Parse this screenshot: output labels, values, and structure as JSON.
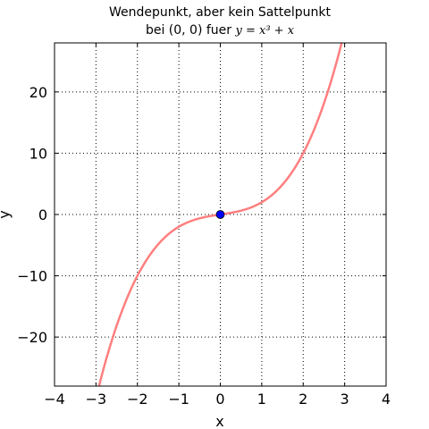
{
  "chart_data": {
    "type": "line",
    "title_line1": "Wendepunkt, aber kein Sattelpunkt",
    "title_line2_prefix": "bei (0, 0) fuer ",
    "title_equation": "y = x³ + x",
    "xlabel": "x",
    "ylabel": "y",
    "xlim": [
      -4,
      4
    ],
    "ylim": [
      -28,
      28
    ],
    "x_ticks": [
      -4,
      -3,
      -2,
      -1,
      0,
      1,
      2,
      3,
      4
    ],
    "x_tick_labels": [
      "−4",
      "−3",
      "−2",
      "−1",
      "0",
      "1",
      "2",
      "3",
      "4"
    ],
    "y_ticks": [
      -20,
      -10,
      0,
      10,
      20
    ],
    "y_tick_labels": [
      "−20",
      "−10",
      "0",
      "10",
      "20"
    ],
    "grid": true,
    "series": [
      {
        "function": "x^3 + x",
        "color": "#ff7f7f",
        "x_range": [
          -3,
          3
        ]
      }
    ],
    "points": [
      {
        "x": 0,
        "y": 0,
        "color": "#0000ff"
      }
    ]
  }
}
